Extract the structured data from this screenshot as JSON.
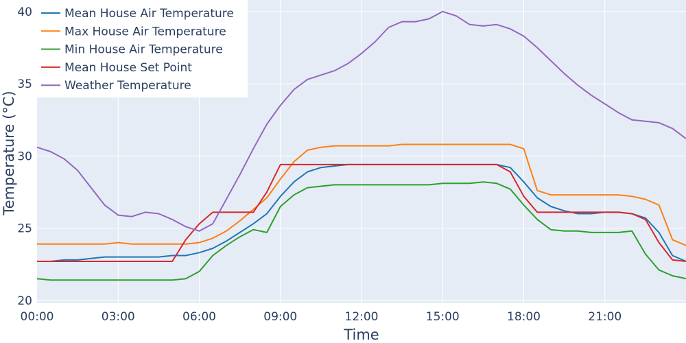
{
  "chart_data": {
    "type": "line",
    "title": "",
    "xlabel": "Time",
    "ylabel": "Temperature (°C)",
    "x_tick_labels": [
      "00:00",
      "03:00",
      "06:00",
      "09:00",
      "12:00",
      "15:00",
      "18:00",
      "21:00"
    ],
    "y_tick_labels": [
      "20",
      "25",
      "30",
      "35",
      "40"
    ],
    "xlim": [
      "00:00",
      "24:00"
    ],
    "ylim": [
      19.8,
      40.8
    ],
    "grid": true,
    "legend_position": "top-left",
    "x": [
      "00:00",
      "00:30",
      "01:00",
      "01:30",
      "02:00",
      "02:30",
      "03:00",
      "03:30",
      "04:00",
      "04:30",
      "05:00",
      "05:30",
      "06:00",
      "06:30",
      "07:00",
      "07:30",
      "08:00",
      "08:30",
      "09:00",
      "09:30",
      "10:00",
      "10:30",
      "11:00",
      "11:30",
      "12:00",
      "12:30",
      "13:00",
      "13:30",
      "14:00",
      "14:30",
      "15:00",
      "15:30",
      "16:00",
      "16:30",
      "17:00",
      "17:30",
      "18:00",
      "18:30",
      "19:00",
      "19:30",
      "20:00",
      "20:30",
      "21:00",
      "21:30",
      "22:00",
      "22:30",
      "23:00",
      "23:30",
      "24:00"
    ],
    "series": [
      {
        "name": "Mean House Air Temperature",
        "color": "#1f77b4",
        "values": [
          22.7,
          22.7,
          22.8,
          22.8,
          22.9,
          23.0,
          23.0,
          23.0,
          23.0,
          23.0,
          23.1,
          23.1,
          23.3,
          23.6,
          24.1,
          24.7,
          25.3,
          26.0,
          27.2,
          28.2,
          28.9,
          29.2,
          29.3,
          29.4,
          29.4,
          29.4,
          29.4,
          29.4,
          29.4,
          29.4,
          29.4,
          29.4,
          29.4,
          29.4,
          29.4,
          29.2,
          28.2,
          27.1,
          26.5,
          26.2,
          26.0,
          26.0,
          26.1,
          26.1,
          26.0,
          25.7,
          24.7,
          23.1,
          22.7
        ]
      },
      {
        "name": "Max House Air Temperature",
        "color": "#ff7f0e",
        "values": [
          23.9,
          23.9,
          23.9,
          23.9,
          23.9,
          23.9,
          24.0,
          23.9,
          23.9,
          23.9,
          23.9,
          23.9,
          24.0,
          24.3,
          24.8,
          25.5,
          26.3,
          27.1,
          28.4,
          29.6,
          30.4,
          30.6,
          30.7,
          30.7,
          30.7,
          30.7,
          30.7,
          30.8,
          30.8,
          30.8,
          30.8,
          30.8,
          30.8,
          30.8,
          30.8,
          30.8,
          30.5,
          27.6,
          27.3,
          27.3,
          27.3,
          27.3,
          27.3,
          27.3,
          27.2,
          27.0,
          26.6,
          24.2,
          23.8
        ]
      },
      {
        "name": "Min House Air Temperature",
        "color": "#2ca02c",
        "values": [
          21.5,
          21.4,
          21.4,
          21.4,
          21.4,
          21.4,
          21.4,
          21.4,
          21.4,
          21.4,
          21.4,
          21.5,
          22.0,
          23.1,
          23.8,
          24.4,
          24.9,
          24.7,
          26.5,
          27.3,
          27.8,
          27.9,
          28.0,
          28.0,
          28.0,
          28.0,
          28.0,
          28.0,
          28.0,
          28.0,
          28.1,
          28.1,
          28.1,
          28.2,
          28.1,
          27.7,
          26.6,
          25.6,
          24.9,
          24.8,
          24.8,
          24.7,
          24.7,
          24.7,
          24.8,
          23.2,
          22.1,
          21.7,
          21.5
        ]
      },
      {
        "name": "Mean House Set Point",
        "color": "#d62728",
        "values": [
          22.7,
          22.7,
          22.7,
          22.7,
          22.7,
          22.7,
          22.7,
          22.7,
          22.7,
          22.7,
          22.7,
          24.2,
          25.3,
          26.1,
          26.1,
          26.1,
          26.1,
          27.5,
          29.4,
          29.4,
          29.4,
          29.4,
          29.4,
          29.4,
          29.4,
          29.4,
          29.4,
          29.4,
          29.4,
          29.4,
          29.4,
          29.4,
          29.4,
          29.4,
          29.4,
          28.9,
          27.2,
          26.1,
          26.1,
          26.1,
          26.1,
          26.1,
          26.1,
          26.1,
          26.0,
          25.6,
          24.0,
          22.8,
          22.7
        ]
      },
      {
        "name": "Weather Temperature",
        "color": "#9467bd",
        "values": [
          30.6,
          30.3,
          29.8,
          29.0,
          27.8,
          26.6,
          25.9,
          25.8,
          26.1,
          26.0,
          25.6,
          25.1,
          24.8,
          25.3,
          27.0,
          28.7,
          30.5,
          32.2,
          33.5,
          34.6,
          35.3,
          35.6,
          35.9,
          36.4,
          37.1,
          37.9,
          38.9,
          39.3,
          39.3,
          39.5,
          40.0,
          39.7,
          39.1,
          39.0,
          39.1,
          38.8,
          38.3,
          37.5,
          36.6,
          35.7,
          34.9,
          34.2,
          33.6,
          33.0,
          32.5,
          32.4,
          32.3,
          31.9,
          31.2
        ]
      }
    ]
  }
}
